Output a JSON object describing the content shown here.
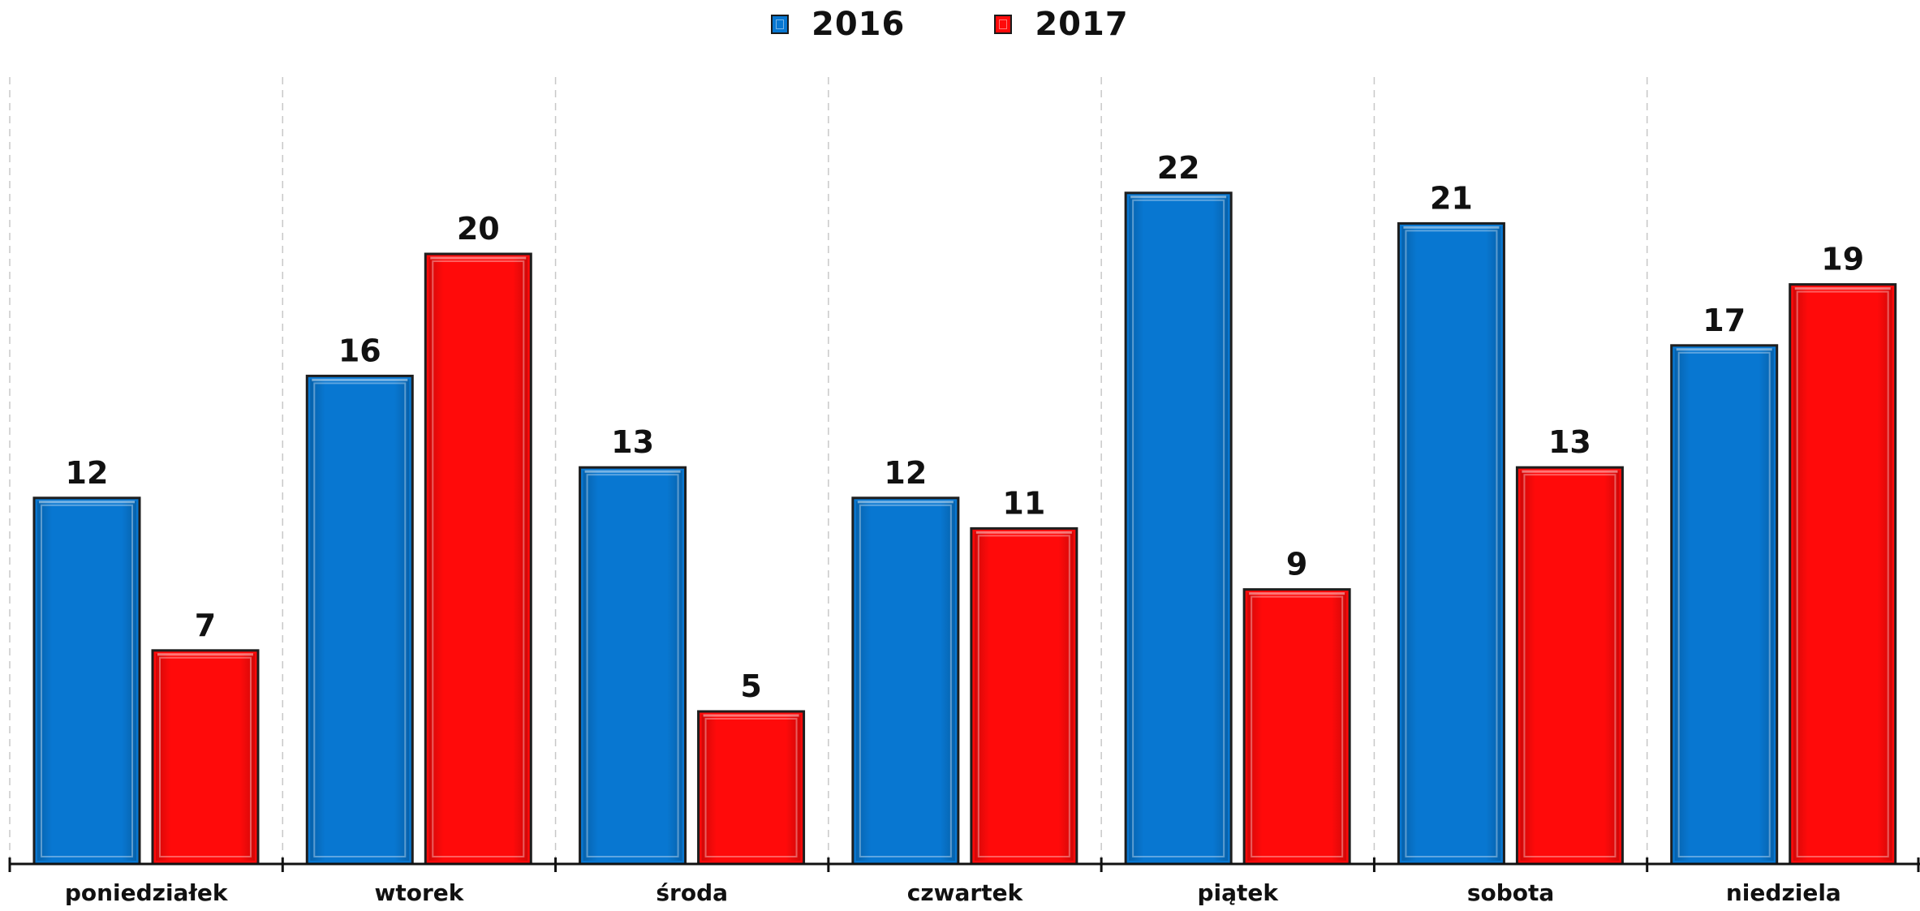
{
  "chart_data": {
    "type": "bar",
    "categories": [
      "poniedziałek",
      "wtorek",
      "środa",
      "czwartek",
      "piątek",
      "sobota",
      "niedziela"
    ],
    "series": [
      {
        "name": "2016",
        "color": "#0877D1",
        "values": [
          12,
          16,
          13,
          12,
          22,
          21,
          17
        ]
      },
      {
        "name": "2017",
        "color": "#FF0A0A",
        "values": [
          7,
          20,
          5,
          11,
          9,
          13,
          19
        ]
      }
    ],
    "ylim": [
      0,
      24
    ],
    "grid": "vertical-dashed",
    "legend_position": "top-center",
    "data_labels": true
  }
}
